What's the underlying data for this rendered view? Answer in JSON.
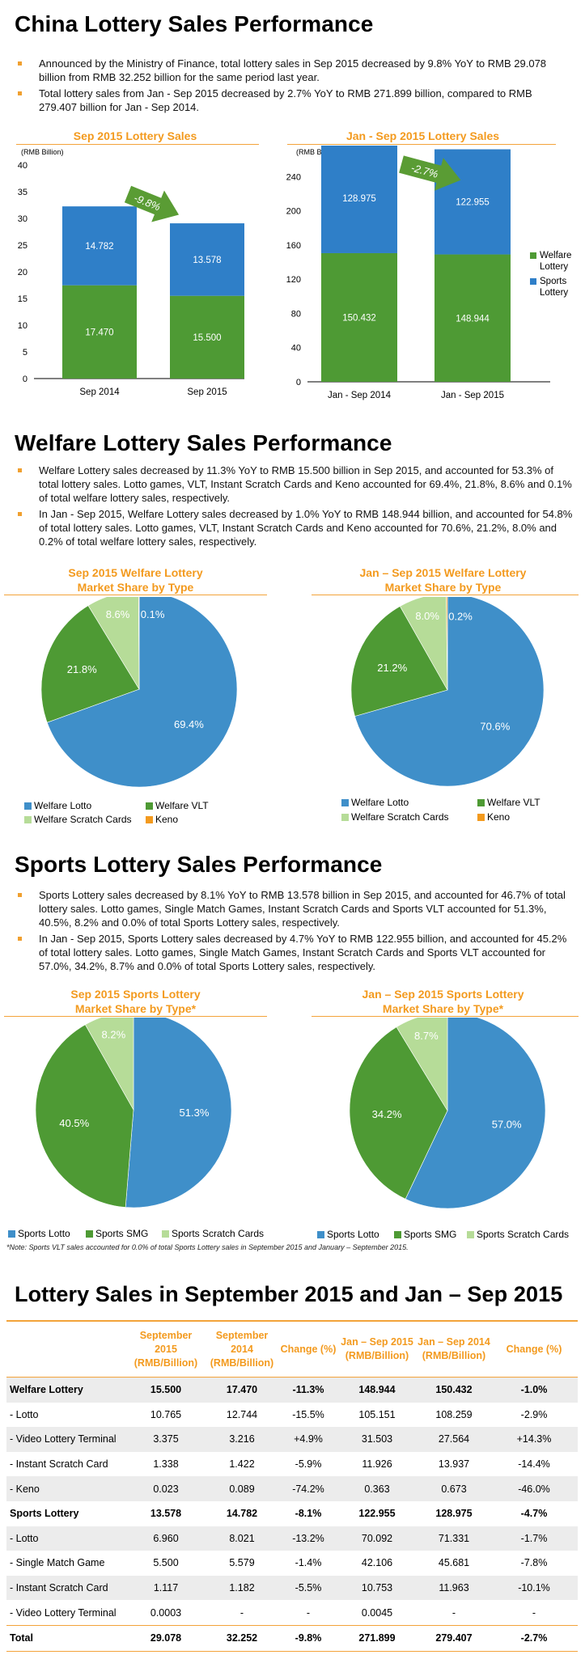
{
  "section1": {
    "title": "China Lottery Sales Performance",
    "bullets": [
      "Announced by the Ministry of Finance, total lottery sales in Sep 2015 decreased by 9.8% YoY to RMB 29.078 billion from RMB 32.252 billion for the same period last year.",
      "Total lottery sales from Jan - Sep 2015 decreased by 2.7% YoY to RMB 271.899 billion, compared to RMB 279.407 billion for Jan - Sep 2014."
    ]
  },
  "section2": {
    "title": "Welfare Lottery Sales Performance",
    "bullets": [
      "Welfare Lottery sales decreased by 11.3% YoY to RMB 15.500 billion in Sep 2015, and accounted for 53.3% of total lottery sales. Lotto games, VLT, Instant Scratch Cards and Keno accounted for 69.4%, 21.8%, 8.6% and 0.1% of total welfare lottery sales, respectively.",
      "In Jan - Sep 2015, Welfare Lottery sales decreased by 1.0% YoY to RMB 148.944 billion, and accounted for 54.8% of total lottery sales. Lotto games, VLT, Instant Scratch Cards and Keno accounted for 70.6%, 21.2%, 8.0% and 0.2% of total welfare lottery sales, respectively."
    ]
  },
  "section3": {
    "title": "Sports Lottery Sales Performance",
    "bullets": [
      "Sports Lottery sales decreased by 8.1% YoY to RMB 13.578 billion in Sep 2015, and accounted for 46.7% of total lottery sales. Lotto games, Single Match Games, Instant Scratch Cards and Sports VLT accounted for 51.3%, 40.5%, 8.2% and 0.0% of total Sports Lottery sales, respectively.",
      "In Jan - Sep 2015, Sports Lottery sales decreased by 4.7% YoY to RMB 122.955 billion, and accounted for 45.2% of total lottery sales. Lotto games, Single Match Games, Instant Scratch Cards and Sports VLT accounted for 57.0%, 34.2%, 8.7% and 0.0% of total Sports Lottery sales, respectively."
    ],
    "note": "*Note: Sports VLT sales accounted for 0.0% of total Sports Lottery sales in September 2015 and January – September 2015."
  },
  "colors": {
    "welfare": "#4e9a34",
    "sports": "#2f7fc8",
    "scratch": "#b6dc98",
    "keno": "#f39a1e",
    "pie_blue": "#3f8fc9",
    "accent": "#f39a1e"
  },
  "chart_data": [
    {
      "type": "bar",
      "stacked": true,
      "title": "Sep 2015 Lottery Sales",
      "ylabel": "(RMB Billion)",
      "categories": [
        "Sep 2014",
        "Sep 2015"
      ],
      "ylim": [
        0,
        40
      ],
      "yticks": [
        "0",
        "5",
        "10",
        "15",
        "20",
        "25",
        "30",
        "35",
        "40"
      ],
      "series": [
        {
          "name": "Welfare Lottery",
          "values": [
            17.47,
            15.5
          ],
          "labels": [
            "17.470",
            "15.500"
          ]
        },
        {
          "name": "Sports Lottery",
          "values": [
            14.782,
            13.578
          ],
          "labels": [
            "14.782",
            "13.578"
          ]
        }
      ],
      "arrow_label": "-9.8%"
    },
    {
      "type": "bar",
      "stacked": true,
      "title": "Jan - Sep 2015 Lottery Sales",
      "ylabel": "(RMB Billion)",
      "categories": [
        "Jan - Sep 2014",
        "Jan - Sep 2015"
      ],
      "ylim": [
        0,
        280
      ],
      "yticks": [
        "0",
        "40",
        "80",
        "120",
        "160",
        "200",
        "240"
      ],
      "series": [
        {
          "name": "Welfare Lottery",
          "values": [
            150.432,
            148.944
          ],
          "labels": [
            "150.432",
            "148.944"
          ]
        },
        {
          "name": "Sports Lottery",
          "values": [
            128.975,
            122.955
          ],
          "labels": [
            "128.975",
            "122.955"
          ]
        }
      ],
      "legend": [
        [
          "Welfare",
          "Lottery"
        ],
        [
          "Sports",
          "Lottery"
        ]
      ],
      "legend_position": "right",
      "arrow_label": "-2.7%"
    },
    {
      "type": "pie",
      "title_lines": [
        "Sep 2015 Welfare Lottery",
        "Market Share by Type"
      ],
      "slices": [
        {
          "name": "Welfare Lotto",
          "value": 69.4,
          "label": "69.4%"
        },
        {
          "name": "Welfare VLT",
          "value": 21.8,
          "label": "21.8%"
        },
        {
          "name": "Welfare Scratch Cards",
          "value": 8.6,
          "label": "8.6%"
        },
        {
          "name": "Keno",
          "value": 0.1,
          "label": "0.1%"
        }
      ]
    },
    {
      "type": "pie",
      "title_lines": [
        "Jan – Sep 2015 Welfare Lottery",
        "Market Share by Type"
      ],
      "slices": [
        {
          "name": "Welfare Lotto",
          "value": 70.6,
          "label": "70.6%"
        },
        {
          "name": "Welfare VLT",
          "value": 21.2,
          "label": "21.2%"
        },
        {
          "name": "Welfare Scratch Cards",
          "value": 8.0,
          "label": "8.0%"
        },
        {
          "name": "Keno",
          "value": 0.2,
          "label": "0.2%"
        }
      ]
    },
    {
      "type": "pie",
      "title_lines": [
        "Sep 2015 Sports Lottery",
        "Market Share by Type*"
      ],
      "slices": [
        {
          "name": "Sports Lotto",
          "value": 51.3,
          "label": "51.3%"
        },
        {
          "name": "Sports SMG",
          "value": 40.5,
          "label": "40.5%"
        },
        {
          "name": "Sports Scratch Cards",
          "value": 8.2,
          "label": "8.2%"
        }
      ]
    },
    {
      "type": "pie",
      "title_lines": [
        "Jan – Sep 2015 Sports Lottery",
        "Market Share by Type*"
      ],
      "slices": [
        {
          "name": "Sports Lotto",
          "value": 57.0,
          "label": "57.0%"
        },
        {
          "name": "Sports SMG",
          "value": 34.2,
          "label": "34.2%"
        },
        {
          "name": "Sports Scratch Cards",
          "value": 8.7,
          "label": "8.7%"
        }
      ]
    }
  ],
  "table": {
    "title": "Lottery Sales in September 2015 and Jan – Sep 2015",
    "headers": [
      "",
      "September 2015 (RMB/Billion)",
      "September 2014 (RMB/Billion)",
      "Change (%)",
      "Jan – Sep 2015 (RMB/Billion)",
      "Jan – Sep 2014 (RMB/Billion)",
      "Change (%)"
    ],
    "rows": [
      [
        "Welfare Lottery",
        "15.500",
        "17.470",
        "-11.3%",
        "148.944",
        "150.432",
        "-1.0%"
      ],
      [
        "- Lotto",
        "10.765",
        "12.744",
        "-15.5%",
        "105.151",
        "108.259",
        "-2.9%"
      ],
      [
        "- Video Lottery Terminal",
        "3.375",
        "3.216",
        "+4.9%",
        "31.503",
        "27.564",
        "+14.3%"
      ],
      [
        "- Instant Scratch Card",
        "1.338",
        "1.422",
        "-5.9%",
        "11.926",
        "13.937",
        "-14.4%"
      ],
      [
        "- Keno",
        "0.023",
        "0.089",
        "-74.2%",
        "0.363",
        "0.673",
        "-46.0%"
      ],
      [
        "Sports Lottery",
        "13.578",
        "14.782",
        "-8.1%",
        "122.955",
        "128.975",
        "-4.7%"
      ],
      [
        "- Lotto",
        "6.960",
        "8.021",
        "-13.2%",
        "70.092",
        "71.331",
        "-1.7%"
      ],
      [
        "- Single Match Game",
        "5.500",
        "5.579",
        "-1.4%",
        "42.106",
        "45.681",
        "-7.8%"
      ],
      [
        "- Instant Scratch Card",
        "1.117",
        "1.182",
        "-5.5%",
        "10.753",
        "11.963",
        "-10.1%"
      ],
      [
        "- Video Lottery Terminal",
        "0.0003",
        "-",
        "-",
        "0.0045",
        "-",
        "-"
      ],
      [
        "Total",
        "29.078",
        "32.252",
        "-9.8%",
        "271.899",
        "279.407",
        "-2.7%"
      ]
    ]
  }
}
